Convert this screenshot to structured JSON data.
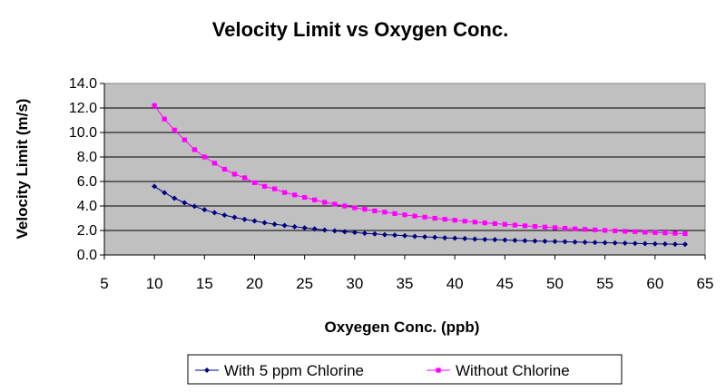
{
  "chart_data": {
    "type": "line",
    "title": "Velocity Limit vs Oxygen Conc.",
    "xlabel": "Oxyegen Conc. (ppb)",
    "ylabel": "Velocity Limit (m/s)",
    "xlim": [
      5,
      65
    ],
    "ylim": [
      0,
      14
    ],
    "x_ticks": [
      "5",
      "10",
      "15",
      "20",
      "25",
      "30",
      "35",
      "40",
      "45",
      "50",
      "55",
      "60",
      "65"
    ],
    "y_ticks": [
      "0.0",
      "2.0",
      "4.0",
      "6.0",
      "8.0",
      "10.0",
      "12.0",
      "14.0"
    ],
    "grid": "horizontal",
    "plot_background": "#c0c0c0",
    "legend_position": "bottom",
    "x": [
      10,
      11,
      12,
      13,
      14,
      15,
      16,
      17,
      18,
      19,
      20,
      21,
      22,
      23,
      24,
      25,
      26,
      27,
      28,
      29,
      30,
      31,
      32,
      33,
      34,
      35,
      36,
      37,
      38,
      39,
      40,
      41,
      42,
      43,
      44,
      45,
      46,
      47,
      48,
      49,
      50,
      51,
      52,
      53,
      54,
      55,
      56,
      57,
      58,
      59,
      60,
      61,
      62,
      63
    ],
    "series": [
      {
        "name": "With 5 ppm Chlorine",
        "color": "#000080",
        "marker": "diamond",
        "values": [
          5.6,
          5.08,
          4.63,
          4.27,
          3.97,
          3.69,
          3.45,
          3.25,
          3.07,
          2.91,
          2.78,
          2.63,
          2.51,
          2.41,
          2.31,
          2.21,
          2.13,
          2.04,
          1.97,
          1.9,
          1.84,
          1.77,
          1.72,
          1.66,
          1.62,
          1.57,
          1.52,
          1.48,
          1.44,
          1.4,
          1.37,
          1.34,
          1.3,
          1.27,
          1.25,
          1.22,
          1.19,
          1.17,
          1.14,
          1.12,
          1.1,
          1.08,
          1.06,
          1.04,
          1.02,
          1.0,
          0.98,
          0.96,
          0.94,
          0.93,
          0.91,
          0.9,
          0.88,
          0.87
        ]
      },
      {
        "name": "Without Chlorine",
        "color": "#ff00ff",
        "marker": "square",
        "values": [
          12.2,
          11.1,
          10.2,
          9.4,
          8.6,
          8.0,
          7.5,
          7.0,
          6.6,
          6.3,
          5.9,
          5.6,
          5.4,
          5.1,
          4.9,
          4.7,
          4.5,
          4.3,
          4.15,
          4.0,
          3.85,
          3.73,
          3.6,
          3.5,
          3.38,
          3.28,
          3.18,
          3.09,
          3.0,
          2.92,
          2.84,
          2.76,
          2.69,
          2.62,
          2.56,
          2.5,
          2.44,
          2.38,
          2.33,
          2.28,
          2.23,
          2.18,
          2.13,
          2.09,
          2.05,
          2.01,
          1.97,
          1.93,
          1.9,
          1.86,
          1.83,
          1.8,
          1.77,
          1.74
        ]
      }
    ]
  }
}
